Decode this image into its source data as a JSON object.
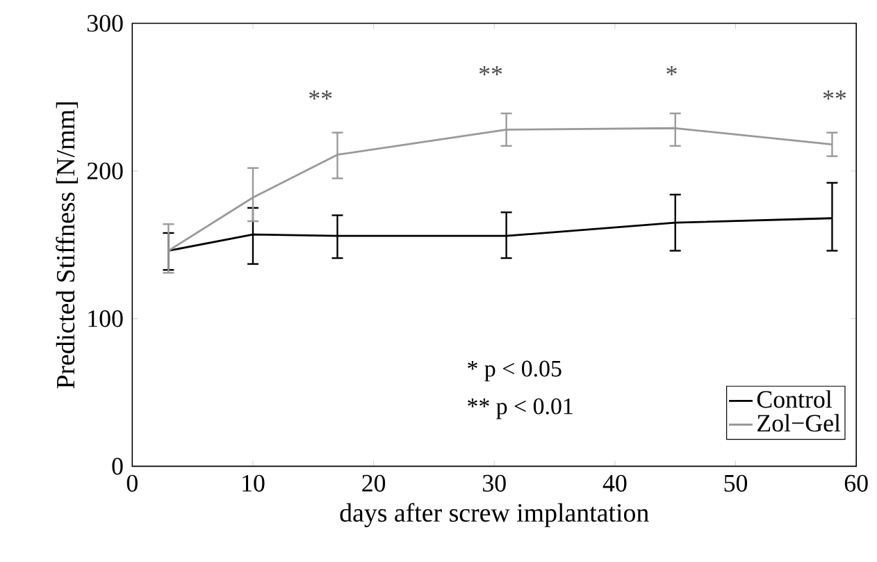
{
  "chart_data": {
    "type": "line",
    "xlabel": "days after screw implantation",
    "ylabel": "Predicted Stiffness [N/mm]",
    "xlim": [
      0,
      60
    ],
    "xticks": [
      0,
      10,
      20,
      30,
      40,
      50,
      60
    ],
    "ylim": [
      0,
      300
    ],
    "yticks": [
      0,
      100,
      200,
      300
    ],
    "x": [
      3,
      10,
      17,
      31,
      45,
      58
    ],
    "series": [
      {
        "name": "Control",
        "color": "#000000",
        "values": [
          146,
          157,
          156,
          156,
          165,
          168
        ],
        "errors": [
          [
            133,
            158
          ],
          [
            137,
            175
          ],
          [
            141,
            170
          ],
          [
            141,
            172
          ],
          [
            146,
            184
          ],
          [
            146,
            192
          ]
        ]
      },
      {
        "name": "Zol−Gel",
        "color": "#999999",
        "values": [
          146,
          182,
          211,
          228,
          229,
          218
        ],
        "errors": [
          [
            131,
            164
          ],
          [
            166,
            202
          ],
          [
            195,
            226
          ],
          [
            217,
            239
          ],
          [
            217,
            239
          ],
          [
            210,
            226
          ]
        ]
      }
    ],
    "annotations": [
      "**",
      "**",
      "*",
      "**",
      "*   p < 0.05",
      "** p < 0.01"
    ],
    "legend": "bottom right",
    "grid": false,
    "line_style": "solid"
  }
}
